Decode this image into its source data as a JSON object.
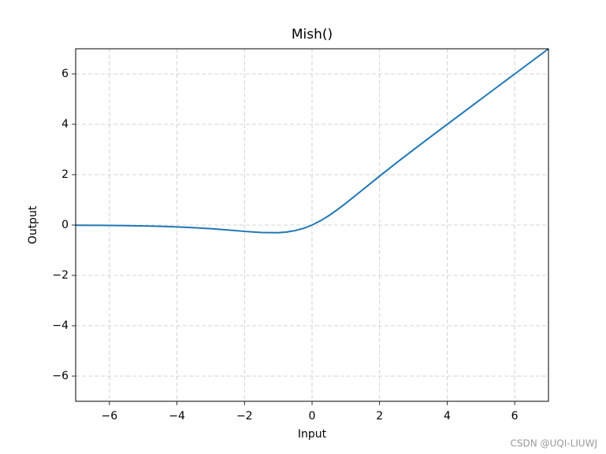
{
  "chart_data": {
    "type": "line",
    "title": "Mish()",
    "x_label": "Input",
    "y_label": "Output",
    "x": [
      -7,
      -6.5,
      -6,
      -5.5,
      -5,
      -4.5,
      -4,
      -3.5,
      -3,
      -2.5,
      -2,
      -1.5,
      -1,
      -0.75,
      -0.5,
      -0.25,
      0,
      0.25,
      0.5,
      0.75,
      1,
      1.5,
      2,
      2.5,
      3,
      3.5,
      4,
      4.5,
      5,
      5.5,
      6,
      6.5,
      7
    ],
    "series": [
      {
        "color": "#1f77b4",
        "values": [
          -0.006,
          -0.01,
          -0.015,
          -0.022,
          -0.034,
          -0.05,
          -0.073,
          -0.104,
          -0.146,
          -0.197,
          -0.252,
          -0.298,
          -0.303,
          -0.277,
          -0.221,
          -0.13,
          0,
          0.17,
          0.375,
          0.61,
          0.865,
          1.403,
          1.944,
          2.471,
          2.987,
          3.494,
          3.997,
          4.499,
          5.0,
          5.5,
          6.0,
          6.5,
          7.0
        ]
      }
    ],
    "xlim": [
      -7,
      7
    ],
    "ylim": [
      -7,
      7
    ],
    "xticks": [
      {
        "value": -6,
        "label": "−6"
      },
      {
        "value": -4,
        "label": "−4"
      },
      {
        "value": -2,
        "label": "−2"
      },
      0,
      2,
      4,
      6
    ],
    "yticks": [
      {
        "value": -6,
        "label": "−6"
      },
      {
        "value": -4,
        "label": "−4"
      },
      {
        "value": -2,
        "label": "−2"
      },
      0,
      2,
      4,
      6
    ],
    "grid": true
  },
  "watermark": "CSDN @UQI-LIUWJ"
}
